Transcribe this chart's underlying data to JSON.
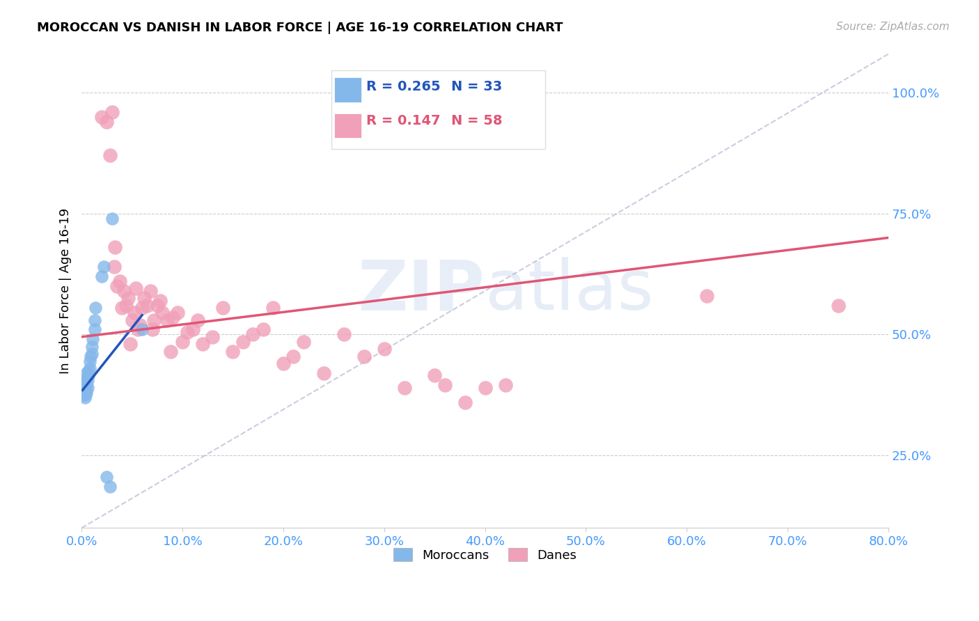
{
  "title": "MOROCCAN VS DANISH IN LABOR FORCE | AGE 16-19 CORRELATION CHART",
  "source": "Source: ZipAtlas.com",
  "ylabel_left": "In Labor Force | Age 16-19",
  "x_tick_vals": [
    0.0,
    0.1,
    0.2,
    0.3,
    0.4,
    0.5,
    0.6,
    0.7,
    0.8
  ],
  "x_tick_labels": [
    "0.0%",
    "10.0%",
    "20.0%",
    "30.0%",
    "40.0%",
    "50.0%",
    "60.0%",
    "70.0%",
    "80.0%"
  ],
  "y_tick_vals": [
    0.25,
    0.5,
    0.75,
    1.0
  ],
  "y_tick_labels": [
    "25.0%",
    "50.0%",
    "75.0%",
    "100.0%"
  ],
  "xlim": [
    0.0,
    0.8
  ],
  "ylim": [
    0.1,
    1.08
  ],
  "blue_R": 0.265,
  "blue_N": 33,
  "pink_R": 0.147,
  "pink_N": 58,
  "blue_color": "#85b8ea",
  "pink_color": "#f0a0b8",
  "blue_line_color": "#2255bb",
  "pink_line_color": "#e05575",
  "legend_blue_label": "Moroccans",
  "legend_pink_label": "Danes",
  "watermark_zip": "ZIP",
  "watermark_atlas": "atlas",
  "blue_scatter_x": [
    0.001,
    0.001,
    0.002,
    0.002,
    0.003,
    0.003,
    0.003,
    0.004,
    0.004,
    0.004,
    0.005,
    0.005,
    0.005,
    0.005,
    0.006,
    0.006,
    0.007,
    0.007,
    0.008,
    0.008,
    0.009,
    0.01,
    0.01,
    0.011,
    0.013,
    0.013,
    0.014,
    0.02,
    0.022,
    0.025,
    0.028,
    0.03,
    0.06
  ],
  "blue_scatter_y": [
    0.385,
    0.39,
    0.375,
    0.395,
    0.37,
    0.385,
    0.4,
    0.375,
    0.39,
    0.4,
    0.38,
    0.395,
    0.41,
    0.42,
    0.39,
    0.405,
    0.415,
    0.425,
    0.43,
    0.445,
    0.455,
    0.46,
    0.475,
    0.49,
    0.51,
    0.53,
    0.555,
    0.62,
    0.64,
    0.205,
    0.185,
    0.74,
    0.51
  ],
  "pink_scatter_x": [
    0.02,
    0.025,
    0.028,
    0.03,
    0.032,
    0.033,
    0.035,
    0.038,
    0.04,
    0.042,
    0.044,
    0.046,
    0.048,
    0.05,
    0.052,
    0.054,
    0.056,
    0.058,
    0.06,
    0.062,
    0.065,
    0.068,
    0.07,
    0.072,
    0.075,
    0.078,
    0.08,
    0.085,
    0.088,
    0.09,
    0.095,
    0.1,
    0.105,
    0.11,
    0.115,
    0.12,
    0.13,
    0.14,
    0.15,
    0.16,
    0.17,
    0.18,
    0.19,
    0.2,
    0.21,
    0.22,
    0.24,
    0.26,
    0.28,
    0.3,
    0.32,
    0.35,
    0.36,
    0.38,
    0.4,
    0.42,
    0.62,
    0.75
  ],
  "pink_scatter_y": [
    0.95,
    0.94,
    0.87,
    0.96,
    0.64,
    0.68,
    0.6,
    0.61,
    0.555,
    0.59,
    0.56,
    0.575,
    0.48,
    0.53,
    0.545,
    0.595,
    0.51,
    0.52,
    0.555,
    0.575,
    0.56,
    0.59,
    0.51,
    0.53,
    0.56,
    0.57,
    0.545,
    0.53,
    0.465,
    0.535,
    0.545,
    0.485,
    0.505,
    0.51,
    0.53,
    0.48,
    0.495,
    0.555,
    0.465,
    0.485,
    0.5,
    0.51,
    0.555,
    0.44,
    0.455,
    0.485,
    0.42,
    0.5,
    0.455,
    0.47,
    0.39,
    0.415,
    0.395,
    0.36,
    0.39,
    0.395,
    0.58,
    0.56
  ],
  "ref_line_x": [
    0.0,
    0.8
  ],
  "ref_line_y": [
    0.1,
    1.08
  ],
  "blue_line_x": [
    0.001,
    0.06
  ],
  "blue_line_y_start": 0.385,
  "blue_line_y_end": 0.54,
  "pink_line_x": [
    0.0,
    0.8
  ],
  "pink_line_y_start": 0.495,
  "pink_line_y_end": 0.7
}
